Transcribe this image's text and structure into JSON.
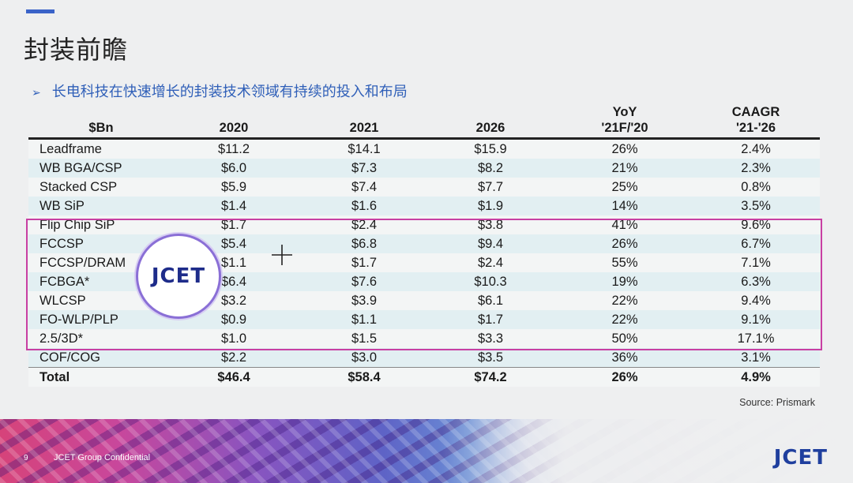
{
  "slide": {
    "title": "封装前瞻",
    "bullet": "长电科技在快速增长的封装技术领域有持续的投入和布局",
    "source": "Source: Prismark",
    "page_number": "9",
    "footer_text": "JCET Group Confidential",
    "logo_text": "JCET",
    "footer_logo_text": "JCET",
    "accent_color": "#3a63c8",
    "highlight_color": "#c83fa3"
  },
  "table": {
    "headers": [
      {
        "line1": "",
        "line2": "$Bn"
      },
      {
        "line1": "",
        "line2": "2020"
      },
      {
        "line1": "",
        "line2": "2021"
      },
      {
        "line1": "",
        "line2": "2026"
      },
      {
        "line1": "YoY",
        "line2": "'21F/'20"
      },
      {
        "line1": "CAAGR",
        "line2": "'21-'26"
      }
    ],
    "rows": [
      [
        "Leadframe",
        "$11.2",
        "$14.1",
        "$15.9",
        "26%",
        "2.4%"
      ],
      [
        "WB BGA/CSP",
        "$6.0",
        "$7.3",
        "$8.2",
        "21%",
        "2.3%"
      ],
      [
        "Stacked CSP",
        "$5.9",
        "$7.4",
        "$7.7",
        "25%",
        "0.8%"
      ],
      [
        "WB SiP",
        "$1.4",
        "$1.6",
        "$1.9",
        "14%",
        "3.5%"
      ],
      [
        "Flip Chip SiP",
        "$1.7",
        "$2.4",
        "$3.8",
        "41%",
        "9.6%"
      ],
      [
        "FCCSP",
        "$5.4",
        "$6.8",
        "$9.4",
        "26%",
        "6.7%"
      ],
      [
        "FCCSP/DRAM",
        "$1.1",
        "$1.7",
        "$2.4",
        "55%",
        "7.1%"
      ],
      [
        "FCBGA*",
        "$6.4",
        "$7.6",
        "$10.3",
        "19%",
        "6.3%"
      ],
      [
        "WLCSP",
        "$3.2",
        "$3.9",
        "$6.1",
        "22%",
        "9.4%"
      ],
      [
        "FO-WLP/PLP",
        "$0.9",
        "$1.1",
        "$1.7",
        "22%",
        "9.1%"
      ],
      [
        "2.5/3D*",
        "$1.0",
        "$1.5",
        "$3.3",
        "50%",
        "17.1%"
      ],
      [
        "COF/COG",
        "$2.2",
        "$3.0",
        "$3.5",
        "36%",
        "3.1%"
      ]
    ],
    "total": [
      "Total",
      "$46.4",
      "$58.4",
      "$74.2",
      "26%",
      "4.9%"
    ]
  }
}
